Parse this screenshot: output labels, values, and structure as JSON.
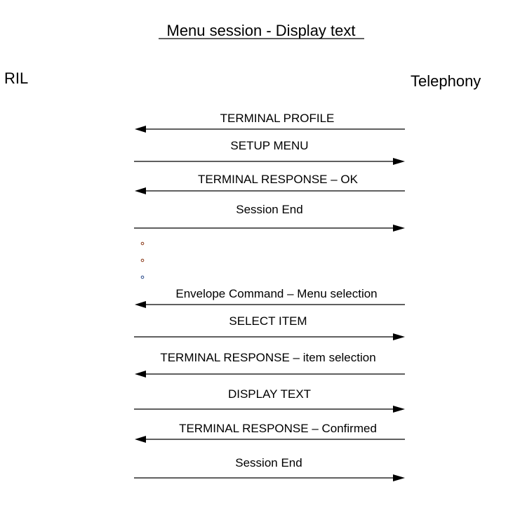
{
  "title": "Menu session - Display text",
  "participants": {
    "left": "RIL",
    "right": "Telephony"
  },
  "messages": [
    {
      "label": "TERMINAL PROFILE",
      "direction": "to-left"
    },
    {
      "label": "SETUP MENU",
      "direction": "to-right"
    },
    {
      "label": "TERMINAL RESPONSE – OK",
      "direction": "to-left"
    },
    {
      "label": "Session End",
      "direction": "to-right"
    },
    {
      "label": "Envelope Command – Menu selection",
      "direction": "to-left"
    },
    {
      "label": "SELECT ITEM",
      "direction": "to-right"
    },
    {
      "label": "TERMINAL RESPONSE – item selection",
      "direction": "to-left"
    },
    {
      "label": "DISPLAY TEXT",
      "direction": "to-right"
    },
    {
      "label": "TERMINAL RESPONSE – Confirmed",
      "direction": "to-left"
    },
    {
      "label": "Session End",
      "direction": "to-right"
    }
  ],
  "ellipsis_dots": 3,
  "colors": {
    "line": "#000000",
    "dot1": "#8b3a1a",
    "dot2": "#8b3a1a",
    "dot3": "#2a4a8b"
  }
}
